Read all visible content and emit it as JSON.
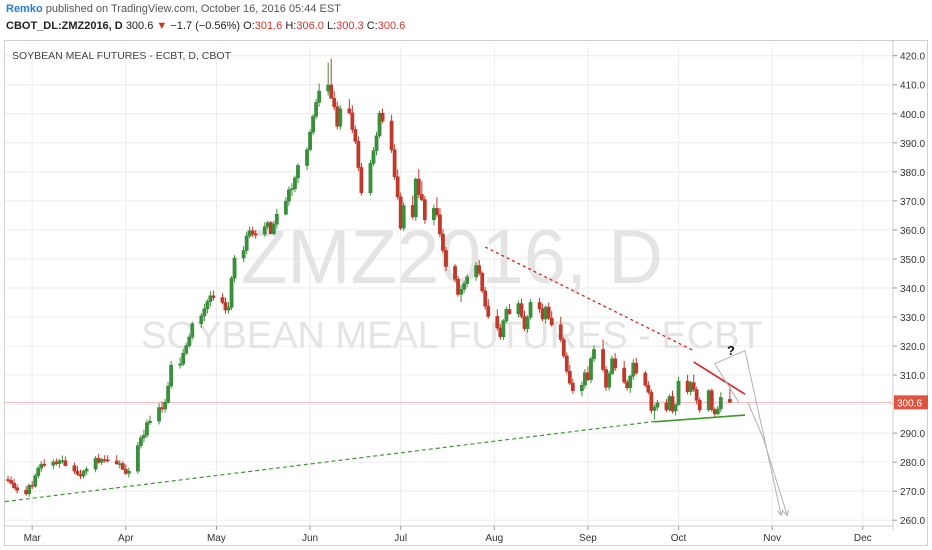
{
  "header": {
    "author": "Remko",
    "published_text": "published on TradingView.com, October 16, 2016 05:44 EST",
    "symbol": "CBOT_DL:ZMZ2016, D",
    "last": "300.6",
    "change": "−1.7 (−0.56%)",
    "o_label": "O:",
    "o_value": "301.6",
    "h_label": "H:",
    "h_value": "306.0",
    "l_label": "L:",
    "l_value": "300.3",
    "c_label": "C:",
    "c_value": "300.6"
  },
  "colors": {
    "up": "#3a8f3a",
    "down": "#c0392b",
    "resistance": "#e02020",
    "support": "#3a9a2a",
    "grid": "#ececec",
    "projection": "#b0b0b0",
    "price_line": "#f3b9b9",
    "price_tag": "#e0533f"
  },
  "chart_data": {
    "type": "candlestick",
    "title": "SOYBEAN MEAL FUTURES - ECBT, D, CBOT",
    "watermark_symbol": "ZMZ2016, D",
    "watermark_name": "SOYBEAN MEAL FUTURES - ECBT",
    "ylim": [
      258,
      423
    ],
    "yticks": [
      260,
      270,
      280,
      290,
      300,
      310,
      320,
      330,
      340,
      350,
      360,
      370,
      380,
      390,
      400,
      410,
      420
    ],
    "x_months": [
      {
        "label": "Mar",
        "day": 0
      },
      {
        "label": "Apr",
        "day": 31
      },
      {
        "label": "May",
        "day": 61
      },
      {
        "label": "Jun",
        "day": 92
      },
      {
        "label": "Jul",
        "day": 122
      },
      {
        "label": "Aug",
        "day": 153
      },
      {
        "label": "Sep",
        "day": 184
      },
      {
        "label": "Oct",
        "day": 214
      },
      {
        "label": "Nov",
        "day": 245
      },
      {
        "label": "Dec",
        "day": 275
      }
    ],
    "xlim_days": [
      -9,
      285
    ],
    "last_price": 300.6,
    "last_price_label": "300.6",
    "annotation": "?",
    "candles": [
      [
        -8,
        274.0,
        275.3,
        272.9,
        273.7
      ],
      [
        -7,
        273.7,
        275.0,
        272.2,
        272.8
      ],
      [
        -6,
        272.8,
        274.3,
        270.6,
        271.2
      ],
      [
        -5,
        271.2,
        272.4,
        269.2,
        270.3
      ],
      [
        -2,
        270.3,
        271.7,
        268.4,
        269.1
      ],
      [
        -1,
        269.1,
        272.7,
        268.1,
        272.0
      ],
      [
        0,
        272.0,
        273.5,
        270.7,
        271.7
      ],
      [
        1,
        271.7,
        276.1,
        271.1,
        275.3
      ],
      [
        2,
        275.3,
        278.7,
        274.4,
        277.9
      ],
      [
        3,
        277.9,
        280.4,
        276.7,
        279.3
      ],
      [
        4,
        279.3,
        281.0,
        278.3,
        278.9
      ],
      [
        7,
        278.9,
        281.0,
        277.6,
        280.1
      ],
      [
        8,
        280.1,
        281.3,
        278.8,
        279.5
      ],
      [
        9,
        279.5,
        281.1,
        278.0,
        280.5
      ],
      [
        10,
        280.5,
        282.3,
        279.5,
        280.5
      ],
      [
        11,
        280.5,
        281.9,
        278.5,
        278.8
      ],
      [
        14,
        278.8,
        279.9,
        276.0,
        276.9
      ],
      [
        15,
        276.9,
        278.6,
        275.3,
        275.8
      ],
      [
        16,
        275.8,
        277.4,
        274.2,
        275.2
      ],
      [
        17,
        275.2,
        277.3,
        274.4,
        276.9
      ],
      [
        18,
        276.9,
        278.5,
        275.7,
        277.6
      ],
      [
        21,
        277.6,
        282.1,
        276.5,
        281.3
      ],
      [
        22,
        281.3,
        282.9,
        279.5,
        279.9
      ],
      [
        23,
        279.9,
        281.5,
        279.0,
        280.9
      ],
      [
        24,
        280.9,
        282.4,
        279.8,
        280.8
      ],
      [
        25,
        280.8,
        282.4,
        279.9,
        280.4
      ],
      [
        28,
        280.4,
        282.4,
        279.1,
        279.4
      ],
      [
        29,
        279.4,
        280.7,
        277.9,
        279.5
      ],
      [
        30,
        279.5,
        280.4,
        277.3,
        277.5
      ],
      [
        31,
        277.5,
        279.2,
        275.6,
        276.1
      ],
      [
        32,
        276.1,
        278.1,
        274.7,
        276.9
      ],
      [
        35,
        276.9,
        286.9,
        275.9,
        285.7
      ],
      [
        36,
        285.7,
        289.3,
        284.7,
        288.4
      ],
      [
        37,
        288.4,
        291.2,
        286.9,
        289.3
      ],
      [
        38,
        289.3,
        294.7,
        288.4,
        293.6
      ],
      [
        39,
        293.6,
        296.0,
        292.8,
        294.1
      ],
      [
        42,
        294.1,
        300.3,
        293.0,
        298.8
      ],
      [
        43,
        298.8,
        300.9,
        297.0,
        298.3
      ],
      [
        44,
        298.3,
        301.8,
        297.1,
        300.6
      ],
      [
        45,
        300.6,
        307.6,
        300.1,
        306.2
      ],
      [
        46,
        306.2,
        314.9,
        305.3,
        313.4
      ],
      [
        49,
        313.4,
        316.1,
        312.2,
        313.8
      ],
      [
        50,
        313.8,
        319.0,
        313.1,
        317.5
      ],
      [
        51,
        317.5,
        321.1,
        316.8,
        320.1
      ],
      [
        52,
        320.1,
        324.3,
        319.3,
        323.1
      ],
      [
        53,
        323.1,
        328.4,
        322.3,
        327.7
      ],
      [
        56,
        327.7,
        331.3,
        326.2,
        330.4
      ],
      [
        57,
        330.4,
        334.5,
        328.6,
        332.8
      ],
      [
        58,
        332.8,
        336.1,
        331.2,
        335.3
      ],
      [
        59,
        335.3,
        338.9,
        333.7,
        337.3
      ],
      [
        60,
        337.3,
        339.1,
        335.6,
        336.7
      ],
      [
        63,
        336.7,
        338.2,
        334.4,
        335.0
      ],
      [
        64,
        335.0,
        336.7,
        331.1,
        332.4
      ],
      [
        65,
        332.4,
        335.1,
        331.2,
        333.3
      ],
      [
        66,
        333.3,
        344.1,
        332.4,
        343.4
      ],
      [
        67,
        343.4,
        351.3,
        341.9,
        350.3
      ],
      [
        70,
        350.3,
        354.4,
        348.9,
        352.9
      ],
      [
        71,
        352.9,
        359.2,
        351.7,
        357.9
      ],
      [
        72,
        357.9,
        361.2,
        357.1,
        359.7
      ],
      [
        73,
        359.7,
        361.1,
        357.5,
        358.6
      ],
      [
        74,
        358.6,
        359.9,
        356.9,
        358.5
      ],
      [
        77,
        358.5,
        362.6,
        357.7,
        361.1
      ],
      [
        78,
        361.1,
        363.2,
        360.1,
        362.5
      ],
      [
        79,
        362.5,
        363.1,
        358.6,
        358.7
      ],
      [
        80,
        358.7,
        363.2,
        358.3,
        362.0
      ],
      [
        81,
        362.0,
        367.3,
        360.4,
        365.4
      ],
      [
        84,
        365.4,
        371.3,
        365.0,
        369.9
      ],
      [
        85,
        369.9,
        375.0,
        368.3,
        373.8
      ],
      [
        86,
        373.8,
        376.1,
        371.7,
        374.2
      ],
      [
        87,
        374.2,
        378.7,
        373.0,
        377.9
      ],
      [
        88,
        377.9,
        382.9,
        376.1,
        382.2
      ],
      [
        91,
        382.2,
        388.4,
        380.6,
        387.6
      ],
      [
        92,
        387.6,
        394.6,
        387.0,
        393.6
      ],
      [
        93,
        393.6,
        399.9,
        392.7,
        399.1
      ],
      [
        94,
        399.1,
        405.1,
        398.1,
        403.9
      ],
      [
        95,
        403.9,
        410.4,
        402.4,
        407.8
      ],
      [
        98,
        407.8,
        417.6,
        406.3,
        409.9
      ],
      [
        99,
        409.9,
        419.0,
        406.8,
        405.3
      ],
      [
        100,
        405.3,
        407.8,
        401.2,
        402.4
      ],
      [
        101,
        402.4,
        404.2,
        394.6,
        395.7
      ],
      [
        102,
        395.7,
        403.0,
        394.5,
        401.7
      ],
      [
        105,
        401.7,
        405.1,
        399.7,
        400.3
      ],
      [
        106,
        400.3,
        402.9,
        393.4,
        394.6
      ],
      [
        107,
        394.6,
        395.9,
        389.5,
        390.5
      ],
      [
        108,
        390.5,
        392.2,
        380.2,
        381.5
      ],
      [
        109,
        381.5,
        383.0,
        371.8,
        372.8
      ],
      [
        112,
        372.8,
        384.2,
        371.9,
        382.9
      ],
      [
        113,
        382.9,
        388.5,
        382.0,
        387.3
      ],
      [
        114,
        387.3,
        393.8,
        385.7,
        392.4
      ],
      [
        115,
        392.4,
        401.0,
        391.7,
        400.2
      ],
      [
        116,
        400.2,
        401.8,
        396.7,
        397.5
      ],
      [
        119,
        397.5,
        399.7,
        386.5,
        387.6
      ],
      [
        120,
        387.6,
        389.5,
        377.3,
        378.3
      ],
      [
        121,
        378.3,
        380.8,
        370.4,
        371.4
      ],
      [
        122,
        371.4,
        372.9,
        359.9,
        360.6
      ],
      [
        123,
        360.6,
        369.5,
        359.6,
        368.4
      ],
      [
        126,
        368.4,
        371.8,
        363.6,
        364.5
      ],
      [
        127,
        364.5,
        378.0,
        363.1,
        377.5
      ],
      [
        128,
        377.5,
        381.0,
        370.9,
        372.2
      ],
      [
        129,
        372.2,
        376.8,
        369.8,
        370.4
      ],
      [
        130,
        370.4,
        371.7,
        362.1,
        363.5
      ],
      [
        133,
        363.5,
        368.7,
        361.6,
        367.4
      ],
      [
        134,
        367.4,
        371.3,
        364.4,
        365.2
      ],
      [
        135,
        365.2,
        367.5,
        357.4,
        358.6
      ],
      [
        136,
        358.6,
        360.3,
        352.0,
        352.9
      ],
      [
        137,
        352.9,
        354.1,
        345.8,
        347.4
      ],
      [
        140,
        347.4,
        348.2,
        342.0,
        343.0
      ],
      [
        141,
        343.0,
        344.2,
        337.0,
        337.8
      ],
      [
        142,
        337.8,
        341.0,
        335.1,
        339.5
      ],
      [
        143,
        339.5,
        342.5,
        338.2,
        341.5
      ],
      [
        144,
        341.5,
        344.7,
        340.2,
        343.8
      ],
      [
        147,
        343.8,
        348.9,
        342.5,
        347.7
      ],
      [
        148,
        347.7,
        349.6,
        344.2,
        345.1
      ],
      [
        149,
        345.1,
        345.7,
        338.3,
        339.0
      ],
      [
        150,
        339.0,
        340.3,
        332.5,
        333.7
      ],
      [
        151,
        333.7,
        336.2,
        329.4,
        330.2
      ],
      [
        154,
        330.2,
        332.6,
        325.3,
        326.2
      ],
      [
        155,
        326.2,
        327.5,
        322.2,
        323.2
      ],
      [
        156,
        323.2,
        329.3,
        322.0,
        328.7
      ],
      [
        157,
        328.7,
        333.6,
        327.9,
        332.6
      ],
      [
        158,
        332.6,
        334.5,
        330.8,
        331.1
      ],
      [
        161,
        331.1,
        335.6,
        329.8,
        334.6
      ],
      [
        162,
        334.6,
        336.3,
        329.4,
        330.2
      ],
      [
        163,
        330.2,
        332.2,
        325.2,
        326.0
      ],
      [
        164,
        326.0,
        330.6,
        324.6,
        329.9
      ],
      [
        165,
        329.9,
        336.1,
        329.1,
        335.0
      ],
      [
        168,
        335.0,
        336.6,
        331.4,
        332.8
      ],
      [
        169,
        332.8,
        334.6,
        328.4,
        329.3
      ],
      [
        170,
        329.3,
        334.0,
        327.8,
        333.4
      ],
      [
        171,
        333.4,
        334.9,
        329.0,
        329.6
      ],
      [
        172,
        329.6,
        332.0,
        326.7,
        327.3
      ],
      [
        175,
        327.3,
        330.1,
        321.3,
        322.2
      ],
      [
        176,
        322.2,
        323.1,
        315.8,
        316.6
      ],
      [
        177,
        316.6,
        317.8,
        310.5,
        311.3
      ],
      [
        178,
        311.3,
        313.5,
        306.5,
        307.2
      ],
      [
        179,
        307.2,
        308.8,
        303.5,
        304.6
      ],
      [
        182,
        304.6,
        307.8,
        302.6,
        306.5
      ],
      [
        183,
        306.5,
        312.0,
        305.3,
        310.8
      ],
      [
        184,
        310.8,
        313.0,
        307.8,
        308.4
      ],
      [
        185,
        308.4,
        316.4,
        307.2,
        315.6
      ],
      [
        186,
        315.6,
        320.2,
        314.5,
        318.8
      ],
      [
        189,
        318.8,
        322.2,
        311.1,
        311.9
      ],
      [
        190,
        311.9,
        313.1,
        304.6,
        305.8
      ],
      [
        191,
        305.8,
        311.4,
        304.7,
        310.5
      ],
      [
        192,
        310.5,
        316.7,
        309.9,
        315.6
      ],
      [
        193,
        315.6,
        317.6,
        311.4,
        312.4
      ],
      [
        196,
        312.4,
        314.9,
        306.9,
        307.6
      ],
      [
        197,
        307.6,
        308.4,
        304.6,
        305.6
      ],
      [
        198,
        305.6,
        310.1,
        303.8,
        309.6
      ],
      [
        199,
        309.6,
        315.4,
        308.4,
        314.1
      ],
      [
        200,
        314.1,
        315.9,
        310.1,
        310.7
      ],
      [
        203,
        310.7,
        311.5,
        305.8,
        306.5
      ],
      [
        204,
        306.5,
        307.9,
        303.3,
        304.1
      ],
      [
        205,
        304.1,
        305.0,
        296.7,
        297.8
      ],
      [
        206,
        297.8,
        299.8,
        294.6,
        298.9
      ],
      [
        207,
        298.9,
        301.4,
        297.8,
        300.4
      ],
      [
        210,
        300.4,
        301.7,
        297.2,
        298.0
      ],
      [
        211,
        298.0,
        303.3,
        297.5,
        302.6
      ],
      [
        212,
        302.6,
        304.6,
        296.8,
        297.6
      ],
      [
        213,
        297.6,
        300.2,
        296.1,
        299.8
      ],
      [
        214,
        299.8,
        309.4,
        299.4,
        307.9
      ],
      [
        217,
        307.9,
        310.1,
        303.3,
        304.3
      ],
      [
        218,
        304.3,
        308.0,
        303.0,
        307.4
      ],
      [
        219,
        307.4,
        310.2,
        304.2,
        305.0
      ],
      [
        220,
        305.0,
        306.0,
        299.9,
        301.3
      ],
      [
        221,
        301.3,
        302.2,
        297.0,
        298.0
      ],
      [
        224,
        298.0,
        305.1,
        297.4,
        304.6
      ],
      [
        225,
        304.6,
        305.3,
        297.3,
        298.1
      ],
      [
        226,
        298.1,
        298.9,
        295.6,
        296.6
      ],
      [
        227,
        296.6,
        299.4,
        296.1,
        298.3
      ],
      [
        228,
        298.3,
        304.1,
        297.2,
        302.3
      ],
      [
        231,
        301.6,
        306.0,
        300.3,
        300.6
      ]
    ],
    "resistance_dotted": [
      [
        150,
        354.1
      ],
      [
        219,
        318.4
      ]
    ],
    "resistance_solid": [
      [
        219,
        314.5
      ],
      [
        236,
        303.4
      ]
    ],
    "support_dotted": [
      [
        -9,
        266.4
      ],
      [
        206,
        294.0
      ]
    ],
    "support_solid": [
      [
        206,
        293.9
      ],
      [
        236,
        296.2
      ]
    ],
    "projection_up": [
      [
        234,
        300.5
      ],
      [
        226,
        313.9
      ],
      [
        236,
        318.4
      ],
      [
        248,
        261.7
      ]
    ],
    "projection_down": [
      [
        237,
        300.5
      ],
      [
        242,
        288.3
      ],
      [
        250,
        261.6
      ]
    ]
  }
}
